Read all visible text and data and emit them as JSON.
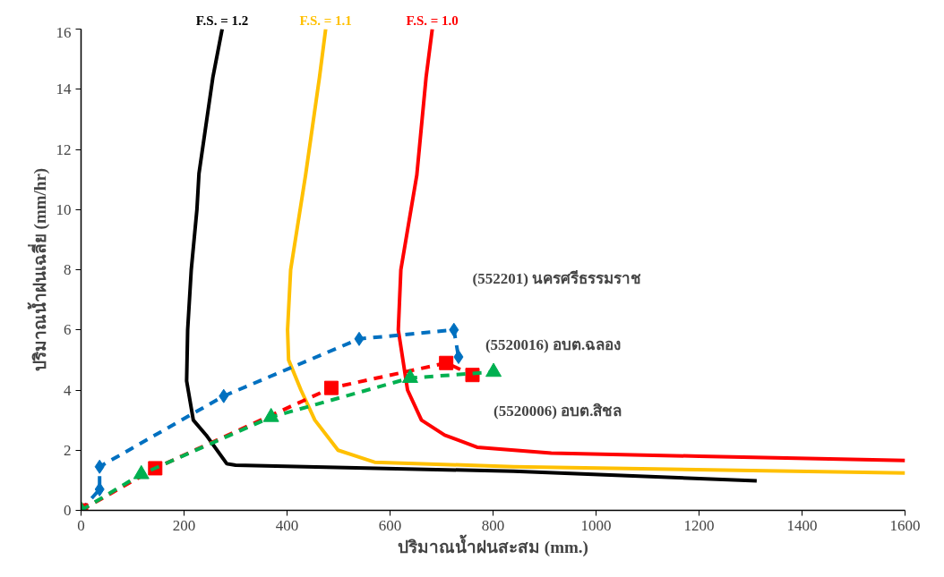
{
  "chart_data": {
    "type": "line",
    "xlabel": "ปริมาณน้ำฝนสะสม (mm.)",
    "ylabel": "ปริมาณน้ำฝนเฉลี่ย (mm/hr)",
    "xlim": [
      0,
      1600
    ],
    "ylim": [
      0,
      16
    ],
    "xticks": [
      0,
      200,
      400,
      600,
      800,
      1000,
      1200,
      1400,
      1600
    ],
    "yticks": [
      0,
      2,
      4,
      6,
      8,
      10,
      12,
      14,
      16
    ],
    "grid": false,
    "legend": false,
    "series": [
      {
        "name": "F.S. = 1.2",
        "color": "#000000",
        "marker": "none",
        "line_style": "solid",
        "x": [
          1312,
          840,
          300,
          283,
          243,
          218,
          205,
          207,
          214,
          225,
          229,
          256,
          274
        ],
        "values": [
          0.98,
          1.3,
          1.5,
          1.55,
          2.5,
          3,
          4.3,
          6,
          8,
          10,
          11.2,
          14.4,
          16
        ]
      },
      {
        "name": "F.S. = 1.1",
        "color": "#ffc000",
        "marker": "none",
        "line_style": "solid",
        "x": [
          1600,
          840,
          570,
          499,
          454,
          427,
          403,
          401,
          407,
          436,
          463,
          475
        ],
        "values": [
          1.24,
          1.45,
          1.6,
          2,
          3,
          4,
          5,
          6,
          8,
          11.15,
          14.4,
          16
        ]
      },
      {
        "name": "F.S. = 1.0",
        "color": "#ff0000",
        "marker": "none",
        "line_style": "solid",
        "x": [
          1600,
          1200,
          913,
          769,
          706,
          661,
          634,
          616,
          621,
          652,
          670,
          682
        ],
        "values": [
          1.66,
          1.8,
          1.9,
          2.1,
          2.5,
          3,
          4,
          6,
          8,
          11.15,
          14.4,
          16
        ]
      },
      {
        "name": "(552201) นครศรีธรรมราช",
        "color": "#0070c0",
        "marker": "diamond",
        "line_style": "dashed",
        "x": [
          0,
          36,
          36,
          277,
          540,
          724,
          733
        ],
        "values": [
          0,
          0.7,
          1.45,
          3.8,
          5.7,
          6.0,
          5.1
        ]
      },
      {
        "name": "(5520016) อบต.ฉลอง",
        "color": "#ff0000",
        "marker": "square",
        "line_style": "dashed",
        "x": [
          0,
          144,
          486,
          709,
          760
        ],
        "values": [
          0,
          1.4,
          4.07,
          4.9,
          4.5
        ]
      },
      {
        "name": "(5520006) อบต.สิชล",
        "color": "#00b050",
        "marker": "triangle",
        "line_style": "dashed",
        "x": [
          0,
          117,
          369,
          639,
          801
        ],
        "values": [
          0,
          1.2,
          3.1,
          4.4,
          4.6
        ]
      }
    ]
  }
}
